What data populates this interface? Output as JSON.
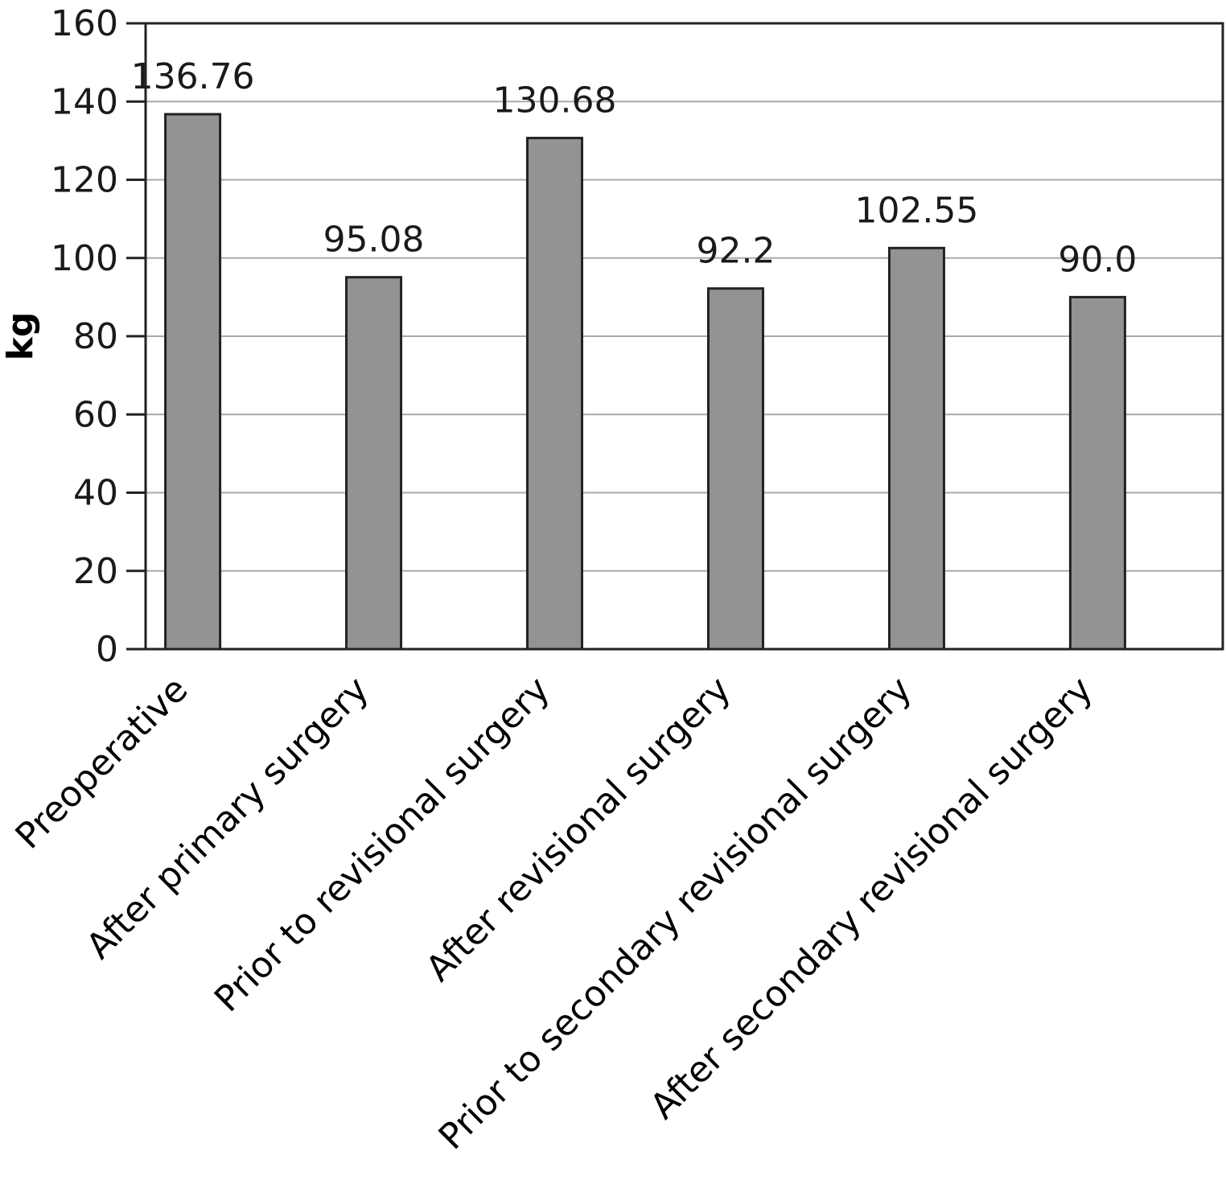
{
  "chart_data": {
    "type": "bar",
    "categories": [
      "Preoperative",
      "After primary surgery",
      "Prior to revisional surgery",
      "After revisional surgery",
      "Prior to secondary revisional surgery",
      "After secondary revisional surgery"
    ],
    "values": [
      136.76,
      95.08,
      130.68,
      92.2,
      102.55,
      90.0
    ],
    "data_labels": [
      "136.76",
      "95.08",
      "130.68",
      "92.2",
      "102.55",
      "90.0"
    ],
    "title": "",
    "xlabel": "",
    "ylabel": "kg",
    "ylim": [
      0,
      160
    ],
    "yticks": [
      "0",
      "20",
      "40",
      "60",
      "80",
      "100",
      "120",
      "140",
      "160"
    ],
    "grid": true,
    "legend": "none",
    "bar_color": "#939393",
    "bar_edge_color": "#222222",
    "grid_color": "#aaaaaa"
  }
}
